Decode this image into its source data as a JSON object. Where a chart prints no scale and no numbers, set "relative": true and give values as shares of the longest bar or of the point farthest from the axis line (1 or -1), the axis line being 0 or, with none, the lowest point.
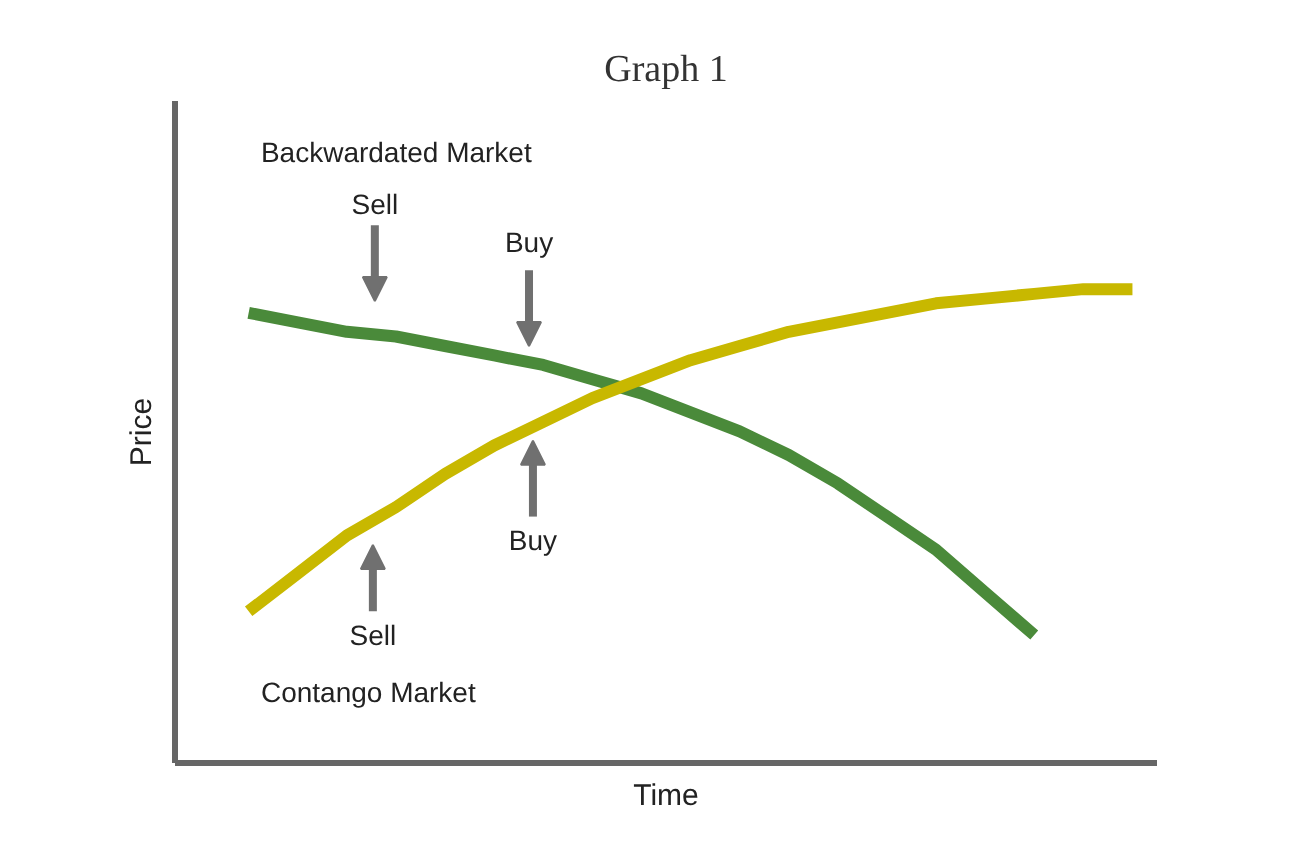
{
  "chart_data": {
    "type": "line",
    "title": "Graph 1",
    "xlabel": "Time",
    "ylabel": "Price",
    "relative": true,
    "tick_labels": false,
    "categories": [
      null,
      null,
      null,
      null,
      null,
      null,
      null,
      null,
      null,
      null,
      null,
      null,
      null,
      null,
      null,
      null,
      null,
      null,
      null,
      null
    ],
    "series": [
      {
        "color": "#4a8a3a",
        "values": [
          null,
          0.95,
          0.93,
          0.91,
          0.9,
          0.88,
          0.86,
          0.84,
          0.81,
          0.78,
          0.74,
          0.7,
          0.65,
          0.59,
          0.52,
          0.45,
          0.36,
          0.27,
          null,
          null
        ]
      },
      {
        "color": "#c8b800",
        "values": [
          null,
          0.32,
          0.4,
          0.48,
          0.54,
          0.61,
          0.67,
          0.72,
          0.77,
          0.81,
          0.85,
          0.88,
          0.91,
          0.93,
          0.95,
          0.97,
          0.98,
          0.99,
          1.0,
          1.0
        ]
      }
    ],
    "annotations": [
      "Backwardated Market",
      "Sell",
      "Buy",
      "Buy",
      "Sell",
      "Contango Market"
    ]
  }
}
